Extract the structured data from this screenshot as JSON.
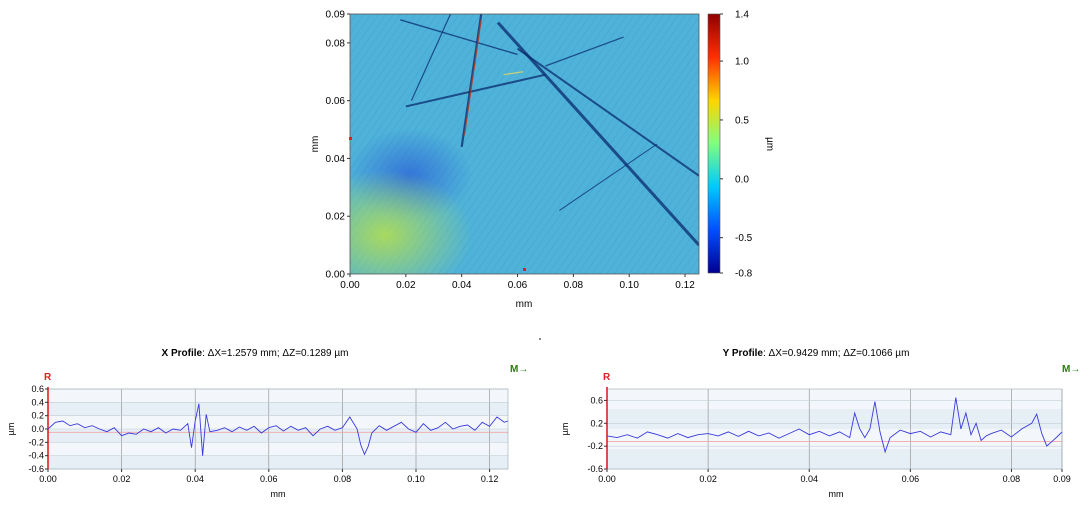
{
  "chart_data": [
    {
      "type": "heatmap",
      "xlabel": "mm",
      "ylabel": "mm",
      "xlim": [
        0,
        0.125
      ],
      "ylim": [
        0,
        0.09
      ],
      "xticks": [
        "0.00",
        "0.02",
        "0.04",
        "0.06",
        "0.08",
        "0.10",
        "0.12"
      ],
      "yticks": [
        "0.00",
        "0.02",
        "0.04",
        "0.06",
        "0.08",
        "0.09"
      ],
      "colorbar": {
        "label": "µm",
        "range": [
          -0.8,
          1.4
        ],
        "ticks": [
          "1.4",
          "1.0",
          "0.5",
          "0.0",
          "-0.5",
          "-0.8"
        ],
        "colors": [
          "#00008f",
          "#0050ff",
          "#00c8ff",
          "#7fff7f",
          "#ffd400",
          "#ff3000",
          "#8f0000"
        ]
      },
      "base_color": "#4fb3d9",
      "scratches_color": "#0a2a6e",
      "highlight_color": "#c23a1a"
    },
    {
      "type": "line",
      "title_bold": "X Profile",
      "title_rest": ": ΔX=1.2579 mm; ΔZ=0.1289 µm",
      "marker_r": "R",
      "marker_m": "M→",
      "xlabel": "mm",
      "ylabel": "µm",
      "xlim": [
        0,
        0.125
      ],
      "ylim": [
        -0.6,
        0.6
      ],
      "xticks": [
        "0.00",
        "0.02",
        "0.04",
        "0.06",
        "0.08",
        "0.10",
        "0.12"
      ],
      "yticks": [
        "0.6",
        "0.4",
        "0.2",
        "0.0",
        "-0.2",
        "-0.4",
        "-0.6"
      ],
      "line_color": "#3a3adc",
      "series": [
        {
          "x": [
            0,
            0.002,
            0.004,
            0.006,
            0.008,
            0.01,
            0.012,
            0.014,
            0.016,
            0.018,
            0.02,
            0.022,
            0.024,
            0.026,
            0.028,
            0.03,
            0.032,
            0.034,
            0.036,
            0.038,
            0.039,
            0.04,
            0.041,
            0.042,
            0.043,
            0.044,
            0.046,
            0.048,
            0.05,
            0.052,
            0.054,
            0.056,
            0.058,
            0.06,
            0.062,
            0.064,
            0.066,
            0.068,
            0.07,
            0.072,
            0.074,
            0.076,
            0.078,
            0.08,
            0.082,
            0.084,
            0.085,
            0.086,
            0.087,
            0.088,
            0.09,
            0.092,
            0.094,
            0.096,
            0.098,
            0.1,
            0.102,
            0.104,
            0.106,
            0.108,
            0.11,
            0.112,
            0.114,
            0.116,
            0.118,
            0.12,
            0.122,
            0.124,
            0.125
          ],
          "y": [
            0.0,
            0.1,
            0.12,
            0.05,
            0.08,
            0.02,
            0.05,
            0.0,
            -0.04,
            0.02,
            -0.1,
            -0.06,
            -0.08,
            0.0,
            -0.04,
            0.02,
            -0.06,
            0.0,
            -0.02,
            0.08,
            -0.28,
            0.12,
            0.38,
            -0.4,
            0.22,
            -0.04,
            -0.02,
            0.02,
            -0.04,
            0.03,
            -0.02,
            0.04,
            -0.06,
            0.02,
            0.05,
            -0.03,
            0.04,
            -0.02,
            0.02,
            -0.1,
            0.0,
            0.04,
            -0.02,
            0.02,
            0.18,
            0.0,
            -0.24,
            -0.38,
            -0.26,
            -0.06,
            0.05,
            -0.02,
            0.04,
            0.1,
            0.0,
            -0.05,
            0.08,
            -0.02,
            0.02,
            0.1,
            0.0,
            0.04,
            0.06,
            -0.02,
            0.1,
            0.04,
            0.18,
            0.1,
            0.12
          ]
        }
      ]
    },
    {
      "type": "line",
      "title_bold": "Y Profile",
      "title_rest": ": ΔX=0.9429 mm; ΔZ=0.1066 µm",
      "marker_r": "R",
      "marker_m": "M→",
      "xlabel": "mm",
      "ylabel": "µm",
      "xlim": [
        0,
        0.09
      ],
      "ylim": [
        -0.6,
        0.8
      ],
      "xticks": [
        "0.00",
        "0.02",
        "0.04",
        "0.06",
        "0.08",
        "0.09"
      ],
      "yticks": [
        "0.6",
        "0.2",
        "-0.2",
        "-0.6"
      ],
      "line_color": "#3a3adc",
      "series": [
        {
          "x": [
            0,
            0.002,
            0.004,
            0.006,
            0.008,
            0.01,
            0.012,
            0.014,
            0.016,
            0.018,
            0.02,
            0.022,
            0.024,
            0.026,
            0.028,
            0.03,
            0.032,
            0.034,
            0.036,
            0.038,
            0.04,
            0.042,
            0.044,
            0.046,
            0.048,
            0.049,
            0.05,
            0.051,
            0.052,
            0.053,
            0.054,
            0.055,
            0.056,
            0.058,
            0.06,
            0.062,
            0.064,
            0.066,
            0.068,
            0.069,
            0.07,
            0.071,
            0.072,
            0.073,
            0.074,
            0.075,
            0.076,
            0.078,
            0.08,
            0.082,
            0.084,
            0.085,
            0.086,
            0.087,
            0.088,
            0.089,
            0.09
          ],
          "y": [
            -0.02,
            -0.05,
            0.0,
            -0.06,
            0.05,
            0.0,
            -0.06,
            0.02,
            -0.05,
            0.0,
            0.02,
            -0.02,
            0.05,
            -0.03,
            0.06,
            -0.02,
            0.03,
            -0.06,
            0.02,
            0.1,
            0.0,
            0.06,
            -0.02,
            0.05,
            -0.05,
            0.38,
            0.1,
            -0.05,
            0.1,
            0.58,
            0.05,
            -0.3,
            -0.05,
            0.08,
            0.02,
            0.06,
            -0.04,
            0.05,
            0.0,
            0.65,
            0.1,
            0.38,
            0.0,
            0.2,
            -0.1,
            -0.02,
            0.02,
            0.08,
            -0.04,
            0.1,
            0.2,
            0.36,
            0.02,
            -0.2,
            -0.12,
            -0.04,
            0.05
          ]
        }
      ]
    }
  ]
}
